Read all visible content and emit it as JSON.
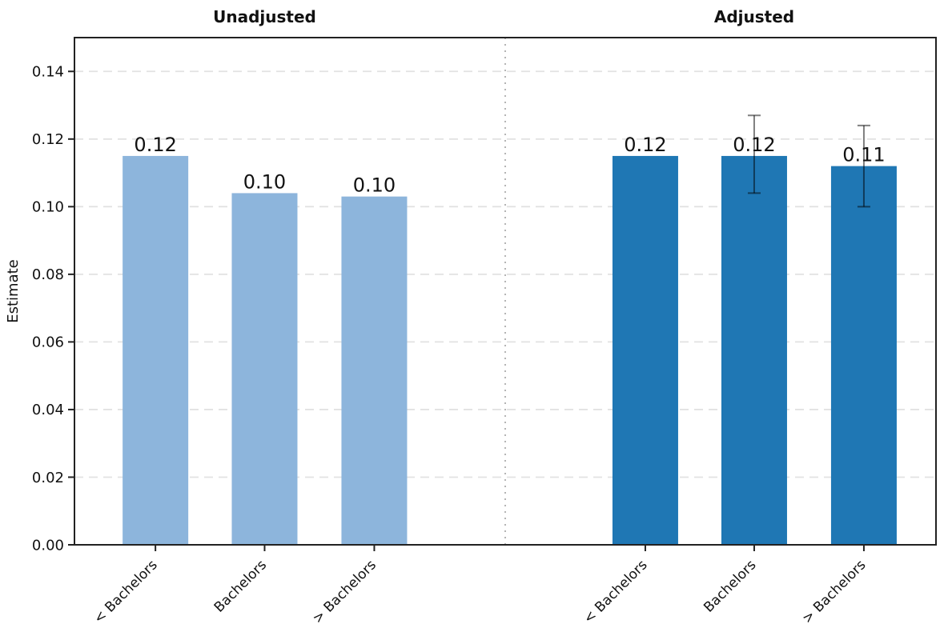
{
  "chart_data": {
    "type": "bar",
    "layout": "two-panel faceted bar chart, single framed axes with vertical dotted divider",
    "ylabel": "Estimate",
    "ylim": [
      0,
      0.15
    ],
    "ytick_values": [
      0.0,
      0.02,
      0.04,
      0.06,
      0.08,
      0.1,
      0.12,
      0.14
    ],
    "ytick_labels": [
      "0.00",
      "0.02",
      "0.04",
      "0.06",
      "0.08",
      "0.10",
      "0.12",
      "0.14"
    ],
    "grid": "horizontal dashed gridlines at each y tick",
    "categories": [
      "< Bachelors",
      "Bachelors",
      "> Bachelors"
    ],
    "panels": [
      {
        "title": "Unadjusted",
        "bar_color": "#8db5dc",
        "categories": [
          "< Bachelors",
          "Bachelors",
          "> Bachelors"
        ],
        "values": [
          0.115,
          0.104,
          0.103
        ],
        "bar_labels": [
          "0.12",
          "0.10",
          "0.10"
        ],
        "error_bars": [
          null,
          null,
          null
        ]
      },
      {
        "title": "Adjusted",
        "bar_color": "#1f77b4",
        "categories": [
          "< Bachelors",
          "Bachelors",
          "> Bachelors"
        ],
        "values": [
          0.115,
          0.115,
          0.112
        ],
        "bar_labels": [
          "0.12",
          "0.12",
          "0.11"
        ],
        "error_bars": [
          null,
          {
            "low": 0.104,
            "high": 0.127
          },
          {
            "low": 0.1,
            "high": 0.124
          }
        ]
      }
    ],
    "separator_line": "vertical dotted gray line between the two panels",
    "colors": {
      "grid": "#e2e2e2",
      "separator": "#b5b5b5",
      "spine": "#222222",
      "error_bar": "rgba(0,0,0,0.5)",
      "text": "#111111",
      "background": "#ffffff"
    }
  }
}
